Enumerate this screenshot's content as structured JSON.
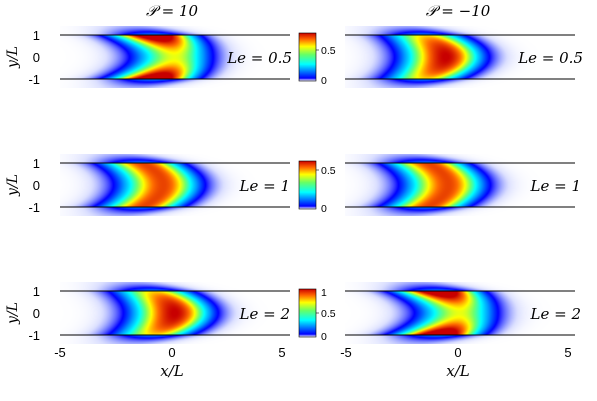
{
  "chart_data": {
    "type": "heatmap",
    "column_titles": [
      "𝒫 = 10",
      "𝒫 = −10"
    ],
    "row_labels": [
      "Le = 0.5",
      "Le = 1",
      "Le = 2"
    ],
    "xlabel": "x/L",
    "ylabel": "y/L",
    "xlim": [
      -5,
      5
    ],
    "ylim": [
      -1,
      1
    ],
    "xticks": [
      "-5",
      "0",
      "5"
    ],
    "yticks": [
      "1",
      "0",
      "-1"
    ],
    "colormap": "jet",
    "colorbars": [
      {
        "max": 0.75,
        "ticks": [
          "0.5",
          "0"
        ]
      },
      {
        "max": 0.58,
        "ticks": [
          "0.5",
          "0"
        ]
      },
      {
        "max": 1.0,
        "ticks": [
          "1",
          "0.5",
          "0"
        ]
      }
    ],
    "panels": [
      {
        "row": 0,
        "col": 0,
        "P": 10,
        "Le": 0.5,
        "peak_x": 0.0,
        "wall_enhancement": 0.65,
        "peak_value": 0.75
      },
      {
        "row": 0,
        "col": 1,
        "P": -10,
        "Le": 0.5,
        "peak_x": -0.6,
        "wall_enhancement": -0.3,
        "peak_value": 0.75
      },
      {
        "row": 1,
        "col": 0,
        "P": 10,
        "Le": 1,
        "peak_x": -0.5,
        "wall_enhancement": 0.0,
        "peak_value": 0.58
      },
      {
        "row": 1,
        "col": 1,
        "P": -10,
        "Le": 1,
        "peak_x": -0.5,
        "wall_enhancement": 0.0,
        "peak_value": 0.58
      },
      {
        "row": 2,
        "col": 0,
        "P": 10,
        "Le": 2,
        "peak_x": 0.0,
        "wall_enhancement": -0.3,
        "peak_value": 1.0
      },
      {
        "row": 2,
        "col": 1,
        "P": -10,
        "Le": 2,
        "peak_x": 0.0,
        "wall_enhancement": 0.65,
        "peak_value": 1.0
      }
    ]
  }
}
